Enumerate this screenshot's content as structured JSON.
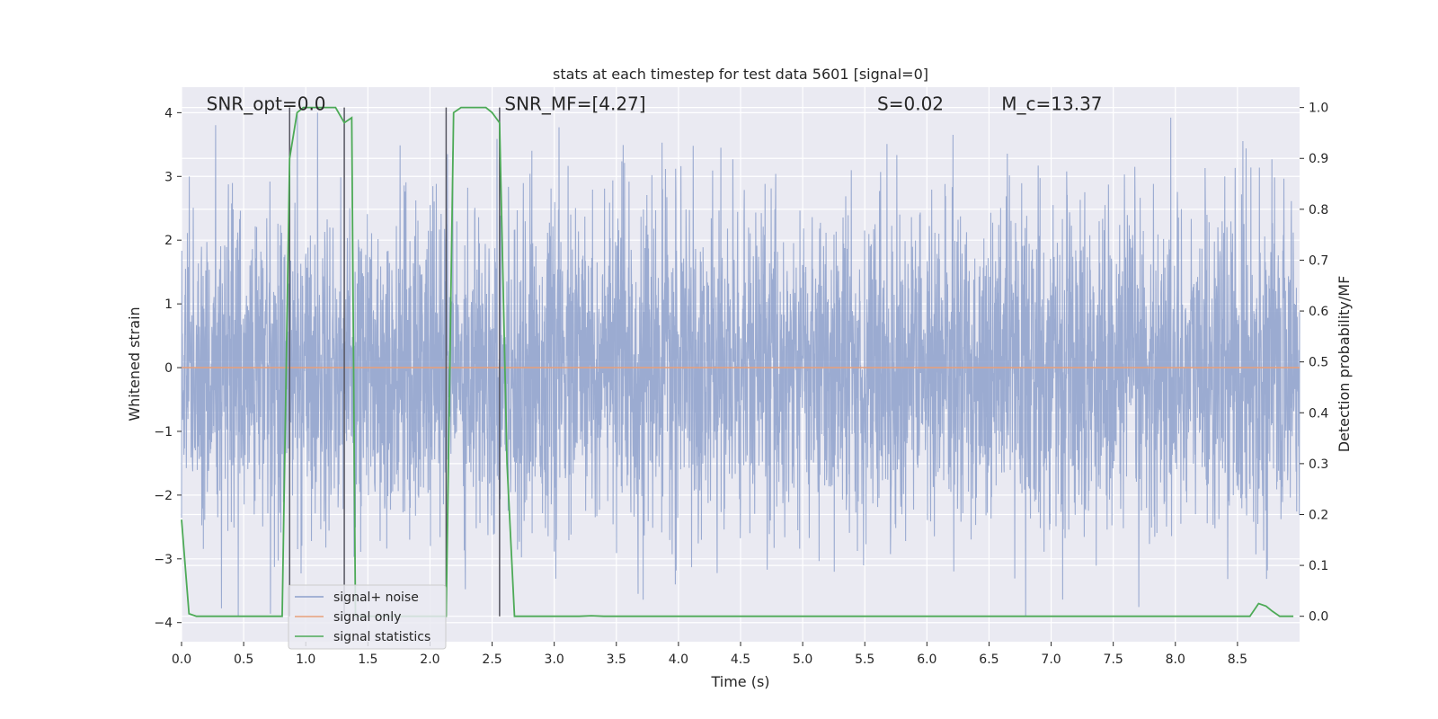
{
  "chart_data": {
    "type": "line",
    "title": "stats at each timestep for test data 5601 [signal=0]",
    "xlabel": "Time (s)",
    "ylabel": "Whitened strain",
    "y2label": "Detection probability/MF",
    "xlim": [
      0,
      9
    ],
    "ylim": [
      -4.3,
      4.4
    ],
    "y2lim": [
      -0.05,
      1.04
    ],
    "xticks": [
      "0.0",
      "0.5",
      "1.0",
      "1.5",
      "2.0",
      "2.5",
      "3.0",
      "3.5",
      "4.0",
      "4.5",
      "5.0",
      "5.5",
      "6.0",
      "6.5",
      "7.0",
      "7.5",
      "8.0",
      "8.5"
    ],
    "yticks": [
      "−4",
      "−3",
      "−2",
      "−1",
      "0",
      "1",
      "2",
      "3",
      "4"
    ],
    "y2ticks": [
      "0.0",
      "0.1",
      "0.2",
      "0.3",
      "0.4",
      "0.5",
      "0.6",
      "0.7",
      "0.8",
      "0.9",
      "1.0"
    ],
    "grid": true,
    "legend_position": "lower-left",
    "annotations": [
      {
        "text": "SNR_opt=0.0",
        "x": 0.2,
        "y": 4.1
      },
      {
        "text": "SNR_MF=[4.27]",
        "x": 2.6,
        "y": 4.1
      },
      {
        "text": "S=0.02",
        "x": 5.6,
        "y": 4.1
      },
      {
        "text": "M_c=13.37",
        "x": 6.6,
        "y": 4.1
      }
    ],
    "vlines": [
      0.87,
      1.31,
      2.13,
      2.56
    ],
    "series": [
      {
        "name": "signal+ noise",
        "color": "#8da0cb",
        "kind": "noise",
        "amplitude": 1.25,
        "peaks_max": 4.0,
        "peaks_min": -3.9
      },
      {
        "name": "signal only",
        "color": "#e8a07a",
        "kind": "flat",
        "value": 0
      },
      {
        "name": "signal statistics",
        "color": "#4daa57",
        "kind": "stat",
        "axis": "right",
        "x": [
          0.0,
          0.06,
          0.12,
          0.3,
          0.81,
          0.87,
          0.93,
          0.98,
          1.1,
          1.24,
          1.31,
          1.37,
          1.4,
          2.07,
          2.13,
          2.19,
          2.25,
          2.35,
          2.45,
          2.5,
          2.56,
          2.62,
          2.68,
          2.8,
          3.2,
          3.3,
          3.4,
          5.0,
          8.3,
          8.6,
          8.67,
          8.73,
          8.78,
          8.84,
          8.9,
          8.95
        ],
        "y": [
          0.19,
          0.005,
          0.0,
          0.0,
          0.0,
          0.9,
          0.99,
          1.0,
          1.0,
          1.0,
          0.97,
          0.98,
          0.0,
          0.0,
          0.0,
          0.99,
          1.0,
          1.0,
          1.0,
          0.99,
          0.97,
          0.3,
          0.0,
          0.0,
          0.0,
          0.001,
          0.0,
          0.0,
          0.0,
          0.0,
          0.025,
          0.02,
          0.01,
          0.0,
          0.0,
          0.0
        ]
      }
    ]
  }
}
